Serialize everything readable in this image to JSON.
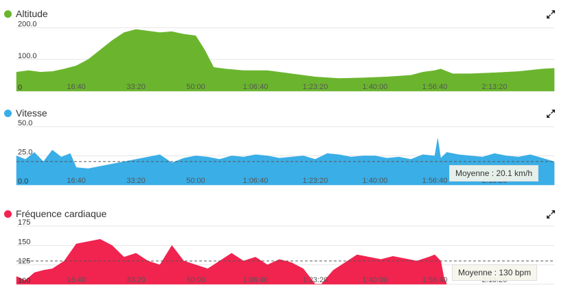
{
  "chart_data": [
    {
      "type": "area",
      "series_name": "Altitude",
      "color": "#6bb52e",
      "y_ticks": [
        "200.0",
        "100.0",
        "0"
      ],
      "yticks_values": [
        200,
        100,
        0
      ],
      "ylim": [
        0,
        210
      ],
      "x_ticks": [
        "16:40",
        "33:20",
        "50:00",
        "1:06:40",
        "1:23:20",
        "1:40:00",
        "1:56:40",
        "2:13:20"
      ],
      "xticks_seconds": [
        1000,
        2000,
        3000,
        4000,
        5000,
        6000,
        7000,
        8000
      ],
      "xlim": [
        0,
        9000
      ],
      "x": [
        0,
        200,
        400,
        600,
        800,
        1000,
        1200,
        1400,
        1600,
        1800,
        2000,
        2200,
        2400,
        2600,
        2800,
        3000,
        3150,
        3300,
        3500,
        3800,
        4200,
        4600,
        5000,
        5400,
        5800,
        6200,
        6600,
        6800,
        7000,
        7100,
        7300,
        7600,
        8000,
        8400,
        8800,
        9000
      ],
      "values": [
        60,
        65,
        60,
        62,
        70,
        80,
        100,
        130,
        160,
        185,
        195,
        190,
        185,
        188,
        180,
        175,
        130,
        75,
        70,
        65,
        65,
        55,
        45,
        40,
        42,
        45,
        50,
        60,
        65,
        70,
        55,
        55,
        58,
        62,
        70,
        72
      ]
    },
    {
      "type": "area",
      "series_name": "Vitesse",
      "color": "#3aaee6",
      "y_ticks": [
        "50.0",
        "25.0",
        "0.0"
      ],
      "yticks_values": [
        50,
        25,
        0
      ],
      "ylim": [
        0,
        50
      ],
      "x_ticks": [
        "16:40",
        "33:20",
        "50:00",
        "1:06:40",
        "1:23:20",
        "1:40:00",
        "1:56:40",
        "2:13:20"
      ],
      "xticks_seconds": [
        1000,
        2000,
        3000,
        4000,
        5000,
        6000,
        7000,
        8000
      ],
      "xlim": [
        0,
        9000
      ],
      "average_value": 20.1,
      "average_label": "Moyenne : 20.1 km/h",
      "x": [
        0,
        150,
        300,
        450,
        600,
        750,
        900,
        1000,
        1200,
        1400,
        1600,
        1800,
        2000,
        2200,
        2400,
        2600,
        2800,
        3000,
        3200,
        3400,
        3600,
        3800,
        4000,
        4200,
        4400,
        4600,
        4800,
        5000,
        5200,
        5400,
        5600,
        5800,
        6000,
        6200,
        6400,
        6600,
        6800,
        7000,
        7050,
        7100,
        7200,
        7400,
        7600,
        7800,
        8000,
        8200,
        8400,
        8600,
        8800,
        9000
      ],
      "values": [
        25,
        22,
        28,
        20,
        30,
        24,
        27,
        15,
        14,
        16,
        18,
        20,
        22,
        24,
        26,
        19,
        23,
        25,
        24,
        22,
        25,
        24,
        26,
        25,
        23,
        24,
        25,
        22,
        27,
        26,
        24,
        25,
        25,
        23,
        24,
        22,
        26,
        25,
        40,
        23,
        28,
        26,
        25,
        24,
        27,
        25,
        24,
        26,
        23,
        20
      ]
    },
    {
      "type": "area",
      "series_name": "Fréquence cardiaque",
      "color": "#f0244f",
      "y_ticks": [
        "175",
        "150",
        "125",
        "100"
      ],
      "yticks_values": [
        175,
        150,
        125,
        100
      ],
      "ylim": [
        100,
        175
      ],
      "x_ticks": [
        "16:40",
        "33:20",
        "50:00",
        "1:06:40",
        "1:23:20",
        "1:40:00",
        "1:56:40",
        "2:13:20"
      ],
      "xticks_seconds": [
        1000,
        2000,
        3000,
        4000,
        5000,
        6000,
        7000,
        8000
      ],
      "xlim": [
        0,
        9000
      ],
      "average_value": 130,
      "average_label": "Moyenne : 130 bpm",
      "x": [
        0,
        150,
        300,
        450,
        600,
        800,
        1000,
        1200,
        1400,
        1600,
        1800,
        2000,
        2200,
        2400,
        2600,
        2800,
        3000,
        3200,
        3400,
        3600,
        3800,
        4000,
        4200,
        4400,
        4600,
        4800,
        4900,
        5000,
        5100,
        5300,
        5500,
        5700,
        5900,
        6100,
        6300,
        6500,
        6700,
        6900,
        7000,
        7100,
        7150,
        7200
      ],
      "values": [
        110,
        105,
        115,
        118,
        120,
        130,
        152,
        155,
        158,
        150,
        135,
        140,
        130,
        125,
        150,
        130,
        125,
        120,
        130,
        140,
        130,
        135,
        125,
        132,
        128,
        120,
        110,
        100,
        100,
        118,
        128,
        138,
        135,
        132,
        136,
        133,
        130,
        135,
        138,
        130,
        110,
        100
      ]
    }
  ]
}
